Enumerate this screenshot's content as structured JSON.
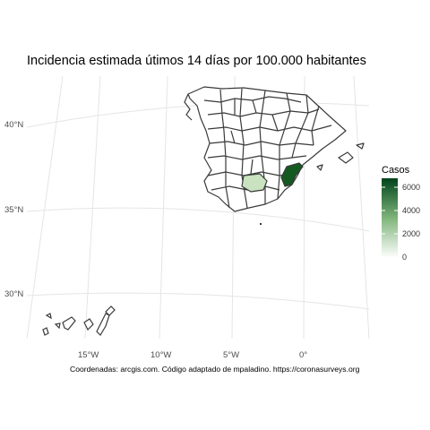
{
  "title": "Incidencia estimada útimos 14 días por 100.000 habitantes",
  "caption": "Coordenadas: arcgis.com. Código adaptado de mpaladino. https://coronasurveys.org",
  "legend": {
    "title": "Casos",
    "ticks": [
      "6000",
      "4000",
      "2000",
      "0"
    ],
    "color_high": "#00441b",
    "color_low": "#ffffff",
    "range": [
      0,
      6800
    ]
  },
  "axes": {
    "lat_labels": [
      "40°N",
      "35°N",
      "30°N"
    ],
    "lon_labels": [
      "15°W",
      "10°W",
      "5°W",
      "0°"
    ]
  },
  "colors": {
    "default_fill": "#ffffff",
    "border": "#3a3a3a",
    "grid": "#e5e5e5"
  },
  "highlighted_regions": [
    {
      "name": "Alicante",
      "value": 6600,
      "color": "#145a20"
    },
    {
      "name": "Jaén",
      "value": 1200,
      "color": "#c9e2c0"
    }
  ]
}
